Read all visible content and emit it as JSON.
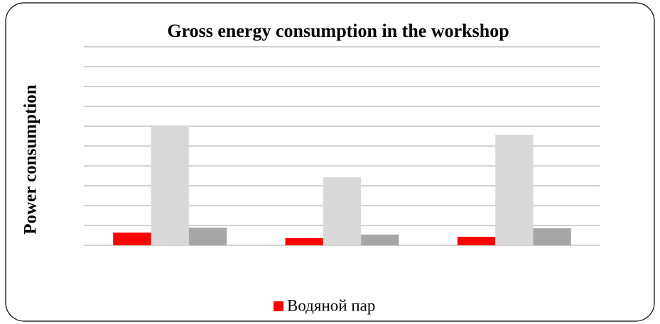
{
  "chart_data": {
    "type": "bar",
    "title": "Gross energy consumption in the workshop",
    "y_label": "Power consumption",
    "categories": [
      null,
      null,
      null
    ],
    "series": [
      {
        "name": "Водяной пар",
        "color": "#ff0000",
        "values": [
          0.64,
          0.36,
          0.43
        ]
      },
      {
        "color": "#d9d9d9",
        "values": [
          6.0,
          3.43,
          5.57
        ]
      },
      {
        "color": "#a6a6a6",
        "values": [
          0.89,
          0.54,
          0.86
        ]
      }
    ],
    "ylim": [
      0,
      10
    ],
    "yticks": [
      0,
      1,
      2,
      3,
      4,
      5,
      6,
      7,
      8,
      9,
      10
    ],
    "grid": true,
    "legend": "bottom"
  }
}
